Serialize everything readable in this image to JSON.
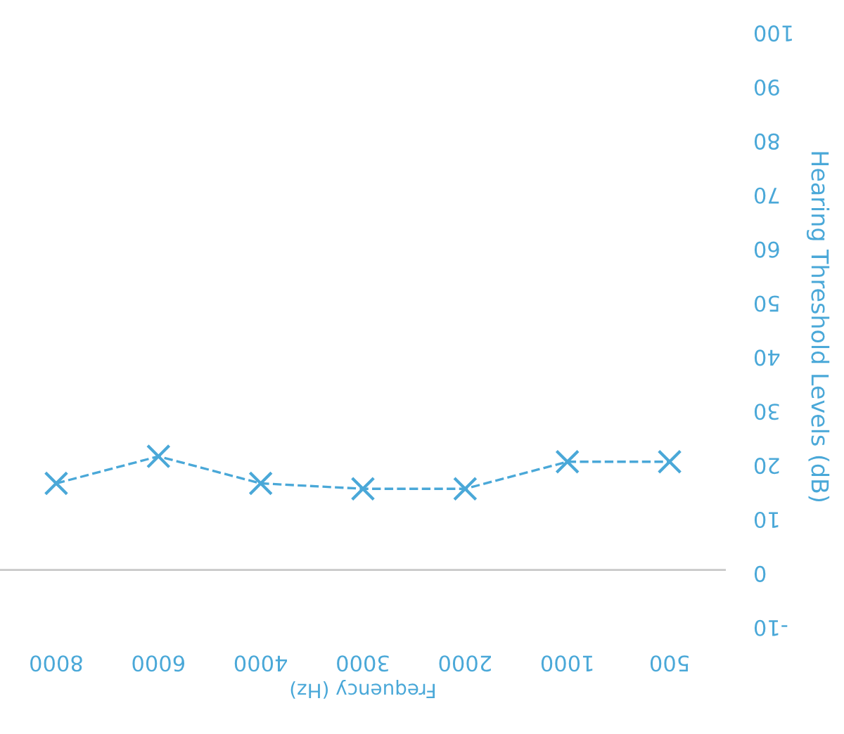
{
  "chart_data": {
    "type": "line",
    "xlabel": "Frequency (Hz)",
    "ylabel": "Hearing Threshold Levels (dB)",
    "categories": [
      "8000",
      "6000",
      "4000",
      "3000",
      "2000",
      "1000",
      "500"
    ],
    "series": [
      {
        "color": "#4aa8d8",
        "values": [
          16,
          21,
          16,
          15,
          15,
          20,
          20
        ]
      }
    ],
    "marker": "cross",
    "line_style": "dashed",
    "ylim": [
      -10,
      100
    ],
    "yticks": [
      -10,
      0,
      10,
      20,
      30,
      40,
      50,
      60,
      70,
      80,
      90,
      100
    ],
    "ref_lines": [
      {
        "axis": "y",
        "value": 0,
        "color": "#c8c8c8"
      }
    ],
    "grid": false,
    "legend": false
  }
}
